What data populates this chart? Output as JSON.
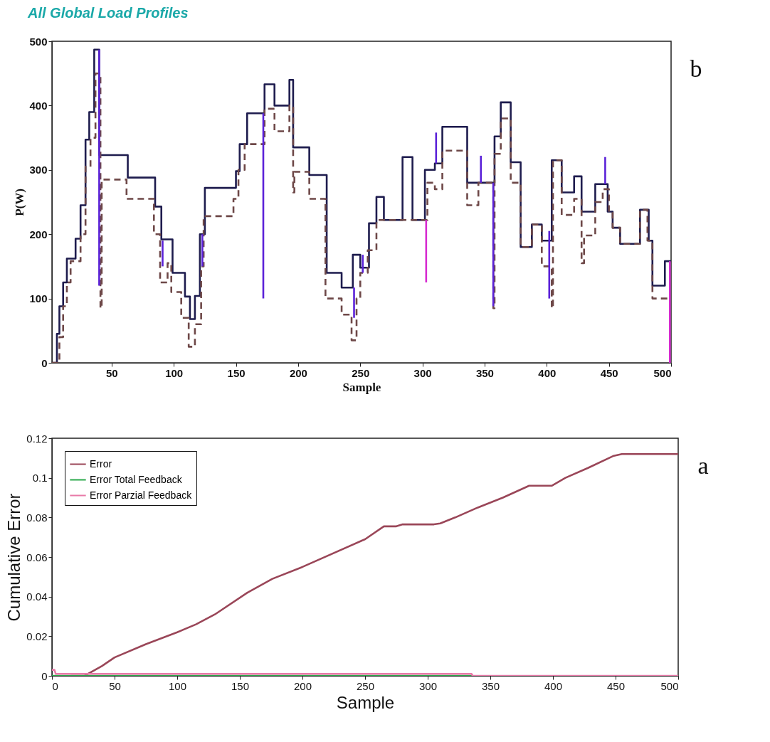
{
  "chart_data": [
    {
      "type": "step",
      "title": "All Global Load Profiles",
      "xlabel": "Sample",
      "ylabel": "P(W)",
      "xlim": [
        2,
        500
      ],
      "xticks": [
        50,
        100,
        150,
        200,
        250,
        300,
        350,
        400,
        450,
        500
      ],
      "ylim": [
        0,
        500
      ],
      "yticks": [
        0,
        100,
        200,
        300,
        400,
        500
      ],
      "annotations": [
        "b"
      ],
      "series": [
        {
          "color": "#1e1c4e",
          "x": [
            2,
            6,
            8,
            11,
            14,
            21,
            25,
            29,
            32,
            36,
            40,
            63,
            85,
            90,
            99,
            109,
            113,
            117,
            121,
            125,
            150,
            153,
            159,
            173,
            181,
            193,
            196,
            209,
            223,
            235,
            244,
            250,
            257,
            263,
            269,
            284,
            292,
            302,
            310,
            316,
            336,
            358,
            363,
            371,
            379,
            388,
            396,
            404,
            412,
            422,
            428,
            439,
            449,
            453,
            459,
            475,
            482,
            485,
            495,
            500
          ],
          "values": [
            0,
            45,
            88,
            125,
            162,
            193,
            245,
            347,
            390,
            487,
            323,
            288,
            243,
            192,
            140,
            103,
            68,
            104,
            200,
            272,
            298,
            340,
            388,
            433,
            400,
            440,
            335,
            292,
            140,
            117,
            168,
            148,
            217,
            258,
            222,
            320,
            222,
            300,
            310,
            367,
            280,
            352,
            405,
            312,
            180,
            215,
            190,
            315,
            265,
            290,
            235,
            278,
            235,
            210,
            185,
            238,
            190,
            120,
            158,
            158
          ]
        },
        {
          "color": "#6e4848",
          "line_style": "dashed",
          "x": [
            2,
            8,
            11,
            14,
            17,
            25,
            29,
            33,
            37,
            41,
            42,
            62,
            84,
            89,
            95,
            98,
            106,
            112,
            117,
            122,
            124,
            148,
            152,
            157,
            173,
            181,
            193,
            196,
            197,
            209,
            222,
            235,
            243,
            247,
            250,
            256,
            263,
            304,
            310,
            316,
            336,
            345,
            357,
            358,
            363,
            371,
            379,
            388,
            396,
            404,
            405,
            412,
            422,
            428,
            430,
            439,
            445,
            450,
            453,
            459,
            475,
            481,
            485,
            500
          ],
          "values": [
            0,
            40,
            88,
            125,
            158,
            200,
            305,
            350,
            450,
            85,
            285,
            255,
            200,
            125,
            155,
            110,
            70,
            25,
            60,
            150,
            228,
            255,
            300,
            340,
            395,
            360,
            400,
            265,
            297,
            255,
            100,
            75,
            35,
            100,
            140,
            175,
            222,
            280,
            270,
            330,
            245,
            280,
            85,
            325,
            380,
            280,
            180,
            215,
            150,
            85,
            315,
            230,
            255,
            155,
            198,
            250,
            270,
            235,
            210,
            185,
            238,
            190,
            100,
            100
          ]
        },
        {
          "type": "line",
          "color": "#5b22d8",
          "x": [
            40,
            40
          ],
          "values": [
            487,
            120
          ]
        },
        {
          "type": "line",
          "color": "#5b22d8",
          "x": [
            91,
            91
          ],
          "values": [
            190,
            150
          ]
        },
        {
          "type": "line",
          "color": "#5b22d8",
          "x": [
            123,
            123
          ],
          "values": [
            200,
            150
          ]
        },
        {
          "type": "line",
          "color": "#5b22d8",
          "x": [
            172,
            172
          ],
          "values": [
            388,
            100
          ]
        },
        {
          "type": "line",
          "color": "#5b22d8",
          "x": [
            245,
            245
          ],
          "values": [
            117,
            70
          ]
        },
        {
          "type": "line",
          "color": "#5b22d8",
          "x": [
            252,
            252
          ],
          "values": [
            168,
            140
          ]
        },
        {
          "type": "line",
          "color": "#5b22d8",
          "x": [
            311,
            311
          ],
          "values": [
            310,
            358
          ]
        },
        {
          "type": "line",
          "color": "#5b22d8",
          "x": [
            347,
            347
          ],
          "values": [
            280,
            322
          ]
        },
        {
          "type": "line",
          "color": "#5b22d8",
          "x": [
            357,
            357
          ],
          "values": [
            280,
            88
          ]
        },
        {
          "type": "line",
          "color": "#5b22d8",
          "x": [
            402,
            402
          ],
          "values": [
            205,
            100
          ]
        },
        {
          "type": "line",
          "color": "#5b22d8",
          "x": [
            447,
            447
          ],
          "values": [
            278,
            320
          ]
        },
        {
          "type": "line",
          "color": "#d62bd0",
          "x": [
            303,
            303
          ],
          "values": [
            222,
            125
          ]
        },
        {
          "type": "line",
          "color": "#d62bd0",
          "x": [
            499,
            499
          ],
          "values": [
            158,
            0
          ]
        }
      ]
    },
    {
      "type": "line",
      "xlabel": "Sample",
      "ylabel": "Cumulative Error",
      "xlim": [
        0,
        500
      ],
      "xticks": [
        0,
        50,
        100,
        150,
        200,
        250,
        300,
        350,
        400,
        450,
        500
      ],
      "ylim": [
        0,
        0.12
      ],
      "yticks": [
        0,
        0.02,
        0.04,
        0.06,
        0.08,
        0.1,
        0.12
      ],
      "legend": "top left",
      "annotations": [
        "a"
      ],
      "series": [
        {
          "name": "Error",
          "color": "#9a4658",
          "x": [
            15,
            26,
            40,
            50,
            75,
            100,
            115,
            130,
            156,
            176,
            200,
            250,
            265,
            275,
            280,
            305,
            310,
            322,
            340,
            360,
            381,
            399,
            410,
            428,
            448,
            455,
            500
          ],
          "values": [
            0,
            0,
            0.005,
            0.0093,
            0.016,
            0.022,
            0.026,
            0.031,
            0.042,
            0.049,
            0.055,
            0.069,
            0.0755,
            0.0755,
            0.0765,
            0.0765,
            0.077,
            0.08,
            0.085,
            0.09,
            0.096,
            0.096,
            0.1,
            0.105,
            0.111,
            0.112,
            0.112
          ]
        },
        {
          "name": "Error Total Feedback",
          "color": "#2aa84a",
          "x": [
            0,
            335
          ],
          "values": [
            0,
            0
          ]
        },
        {
          "name": "Error Parzial Feedback",
          "color": "#e87aa8",
          "x": [
            0,
            2,
            3,
            335,
            336,
            500
          ],
          "values": [
            0.003,
            0.003,
            0.001,
            0.001,
            0,
            0
          ]
        }
      ]
    }
  ]
}
